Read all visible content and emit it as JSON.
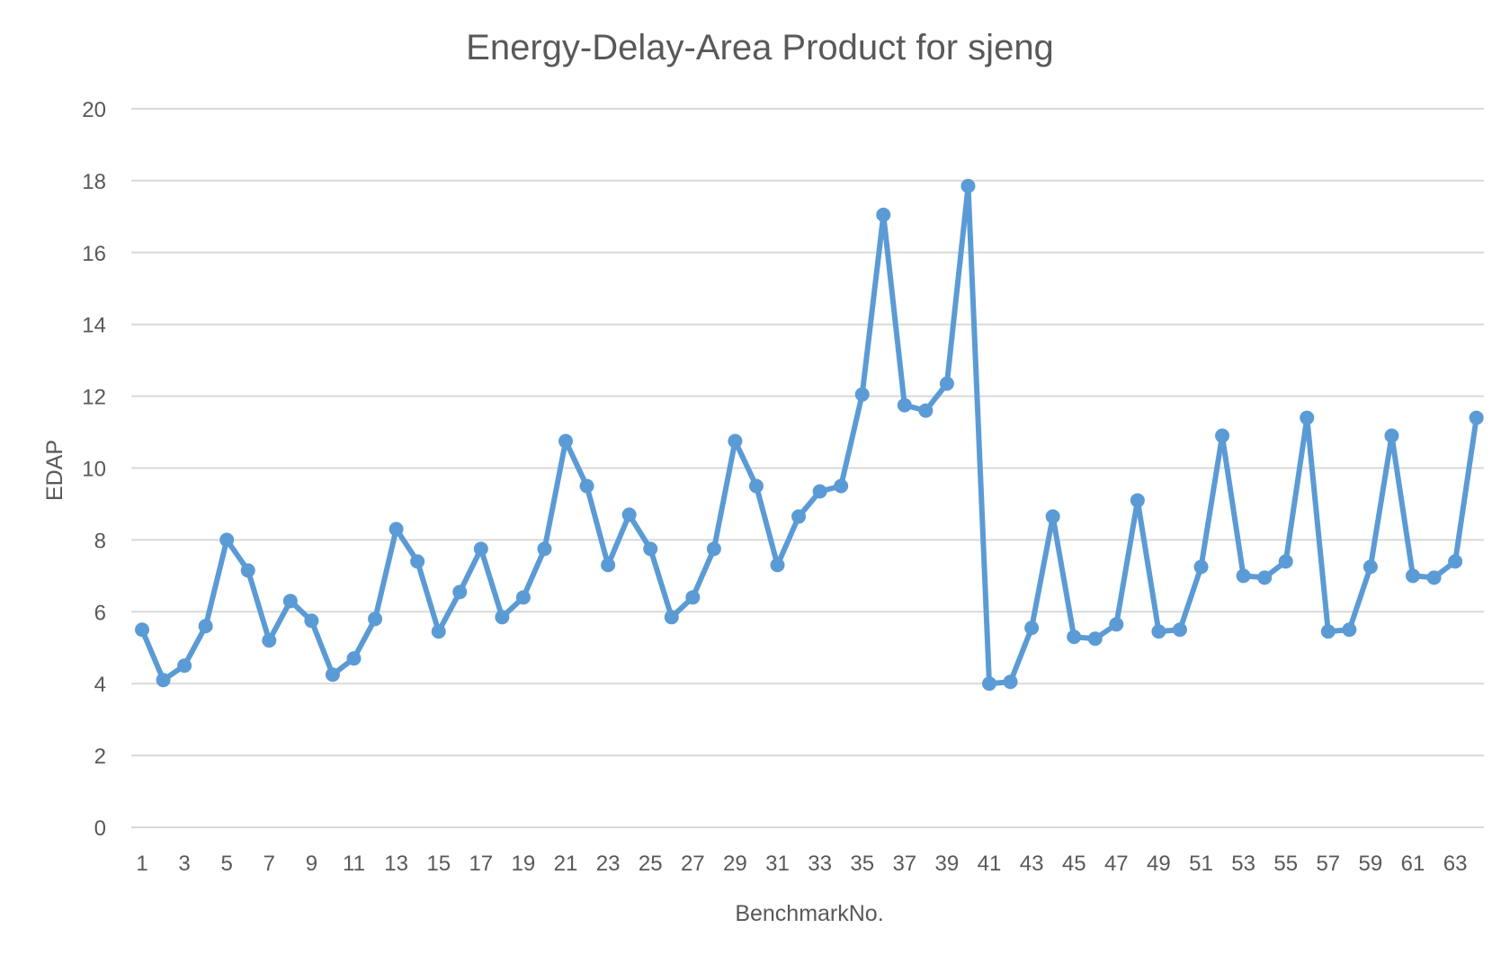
{
  "chart_data": {
    "type": "line",
    "title": "Energy-Delay-Area Product for sjeng",
    "xlabel": "BenchmarkNo.",
    "ylabel": "EDAP",
    "ylim": [
      0,
      20
    ],
    "y_ticks": [
      0,
      2,
      4,
      6,
      8,
      10,
      12,
      14,
      16,
      18,
      20
    ],
    "x_tick_labels": [
      "1",
      "3",
      "5",
      "7",
      "9",
      "11",
      "13",
      "15",
      "17",
      "19",
      "21",
      "23",
      "25",
      "27",
      "29",
      "31",
      "33",
      "35",
      "37",
      "39",
      "41",
      "43",
      "45",
      "47",
      "49",
      "51",
      "53",
      "55",
      "57",
      "59",
      "61",
      "63"
    ],
    "grid": true,
    "legend": "none",
    "color": "#5b9bd5",
    "x": [
      1,
      2,
      3,
      4,
      5,
      6,
      7,
      8,
      9,
      10,
      11,
      12,
      13,
      14,
      15,
      16,
      17,
      18,
      19,
      20,
      21,
      22,
      23,
      24,
      25,
      26,
      27,
      28,
      29,
      30,
      31,
      32,
      33,
      34,
      35,
      36,
      37,
      38,
      39,
      40,
      41,
      42,
      43,
      44,
      45,
      46,
      47,
      48,
      49,
      50,
      51,
      52,
      53,
      54,
      55,
      56,
      57,
      58,
      59,
      60,
      61,
      62,
      63,
      64
    ],
    "series": [
      {
        "values": [
          5.5,
          4.1,
          4.5,
          5.6,
          8.0,
          7.15,
          5.2,
          6.3,
          5.75,
          4.25,
          4.7,
          5.8,
          8.3,
          7.4,
          5.45,
          6.55,
          7.75,
          5.85,
          6.4,
          7.75,
          10.75,
          9.5,
          7.3,
          8.7,
          7.75,
          5.85,
          6.4,
          7.75,
          10.75,
          9.5,
          7.3,
          8.65,
          9.35,
          9.5,
          12.05,
          17.05,
          11.75,
          11.6,
          12.35,
          17.85,
          4.0,
          4.05,
          5.55,
          8.65,
          5.3,
          5.25,
          5.65,
          9.1,
          5.45,
          5.5,
          7.25,
          10.9,
          7.0,
          6.95,
          7.4,
          11.4,
          5.45,
          5.5,
          7.25,
          10.9,
          7.0,
          6.95,
          7.4,
          11.4
        ]
      }
    ]
  }
}
